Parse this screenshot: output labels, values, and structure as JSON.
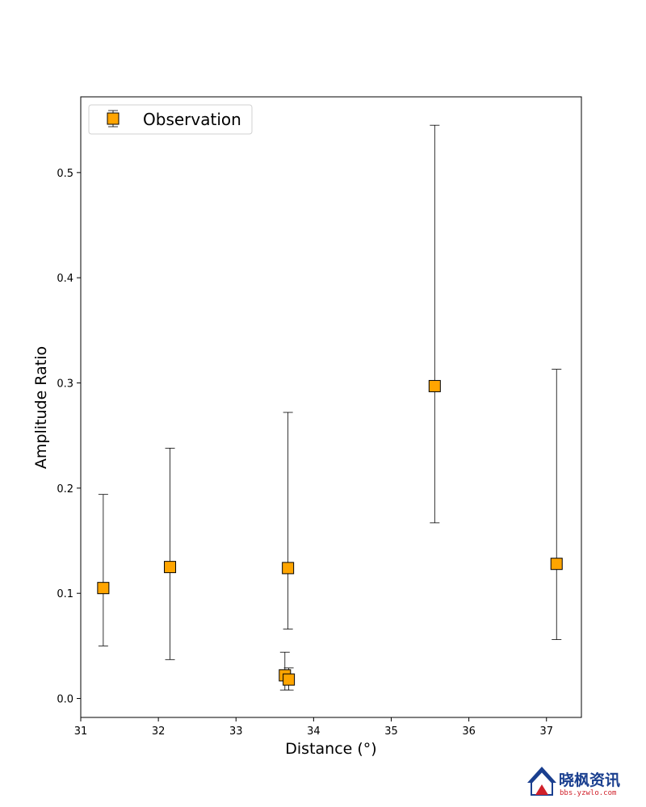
{
  "colors": {
    "marker_fill": "#ffa500",
    "marker_edge": "#000000",
    "errorbar": "#000000",
    "watermark_blue": "#1a3f8f",
    "watermark_red": "#d0202a"
  },
  "chart_data": {
    "type": "scatter",
    "title": "",
    "xlabel": "Distance (°)",
    "ylabel": "Amplitude Ratio",
    "xlim": [
      31,
      37.45
    ],
    "ylim": [
      -0.018,
      0.572
    ],
    "xticks": [
      31,
      32,
      33,
      34,
      35,
      36,
      37
    ],
    "xtick_labels": [
      "31",
      "32",
      "33",
      "34",
      "35",
      "36",
      "37"
    ],
    "yticks": [
      0.0,
      0.1,
      0.2,
      0.3,
      0.4,
      0.5
    ],
    "ytick_labels": [
      "0.0",
      "0.1",
      "0.2",
      "0.3",
      "0.4",
      "0.5"
    ],
    "grid": false,
    "legend_position": "top-left",
    "series": [
      {
        "name": "Observation",
        "marker": "square",
        "points": [
          {
            "x": 31.29,
            "y": 0.105,
            "ylow": 0.05,
            "yhigh": 0.194
          },
          {
            "x": 32.15,
            "y": 0.125,
            "ylow": 0.037,
            "yhigh": 0.238
          },
          {
            "x": 33.67,
            "y": 0.124,
            "ylow": 0.066,
            "yhigh": 0.272
          },
          {
            "x": 33.63,
            "y": 0.022,
            "ylow": 0.008,
            "yhigh": 0.044
          },
          {
            "x": 33.68,
            "y": 0.018,
            "ylow": 0.008,
            "yhigh": 0.029
          },
          {
            "x": 35.56,
            "y": 0.297,
            "ylow": 0.167,
            "yhigh": 0.545
          },
          {
            "x": 37.13,
            "y": 0.128,
            "ylow": 0.056,
            "yhigh": 0.313
          }
        ]
      }
    ]
  },
  "watermark": {
    "title": "晓枫资讯",
    "subtitle": "bbs.yzwlo.com"
  }
}
